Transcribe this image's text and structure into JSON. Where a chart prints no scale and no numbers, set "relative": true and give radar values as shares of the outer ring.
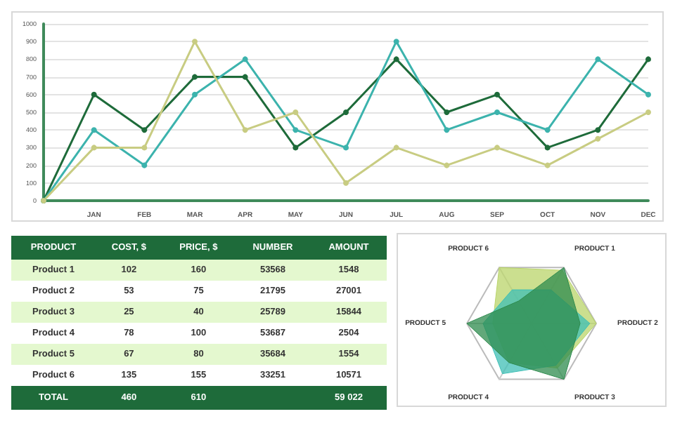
{
  "chart_data": [
    {
      "type": "line",
      "categories": [
        null,
        "JAN",
        "FEB",
        "MAR",
        "APR",
        "MAY",
        "JUN",
        "JUL",
        "AUG",
        "SEP",
        "OCT",
        "NOV",
        "DEC"
      ],
      "ylim": [
        0,
        1000
      ],
      "yticks": [
        0,
        100,
        200,
        300,
        400,
        500,
        600,
        700,
        800,
        900,
        1000
      ],
      "grid": "y",
      "marker": "circle",
      "series": [
        {
          "color": "#1e6b3a",
          "values": [
            0,
            600,
            400,
            700,
            700,
            300,
            500,
            800,
            500,
            600,
            300,
            400,
            800
          ]
        },
        {
          "color": "#3cb3ad",
          "values": [
            0,
            400,
            200,
            600,
            800,
            400,
            300,
            900,
            400,
            500,
            400,
            800,
            600
          ]
        },
        {
          "color": "#c8cc82",
          "values": [
            0,
            300,
            300,
            900,
            400,
            500,
            100,
            300,
            200,
            300,
            200,
            350,
            500
          ]
        }
      ]
    },
    {
      "type": "other",
      "categories": [
        "PRODUCT",
        "COST, $",
        "PRICE, $",
        "NUMBER",
        "AMOUNT"
      ],
      "y_categories": [
        "Product 1",
        "Product 2",
        "Product 3",
        "Product 4",
        "Product 5",
        "Product 6",
        "TOTAL"
      ],
      "cell_labels": [
        [
          "102",
          "160",
          "53568",
          "1548"
        ],
        [
          "53",
          "75",
          "21795",
          "27001"
        ],
        [
          "25",
          "40",
          "25789",
          "15844"
        ],
        [
          "78",
          "100",
          "53687",
          "2504"
        ],
        [
          "67",
          "80",
          "35684",
          "1554"
        ],
        [
          "135",
          "155",
          "33251",
          "10571"
        ],
        [
          "460",
          "610",
          null,
          "59 022"
        ]
      ]
    },
    {
      "type": "radar",
      "relative": true,
      "categories": [
        "PRODUCT 1",
        "PRODUCT 2",
        "PRODUCT 3",
        "PRODUCT 4",
        "PRODUCT 5",
        "PRODUCT 6"
      ],
      "series": [
        {
          "color": "#b9d46a",
          "values": [
            0.95,
            1,
            0.8,
            0.7,
            0.6,
            1
          ]
        },
        {
          "color": "#3fbfb5",
          "values": [
            0.6,
            0.9,
            0.75,
            0.9,
            0.75,
            0.6
          ]
        },
        {
          "color": "#2e8b4e",
          "values": [
            1,
            0.75,
            1,
            0.7,
            1,
            0.4
          ]
        }
      ]
    }
  ]
}
